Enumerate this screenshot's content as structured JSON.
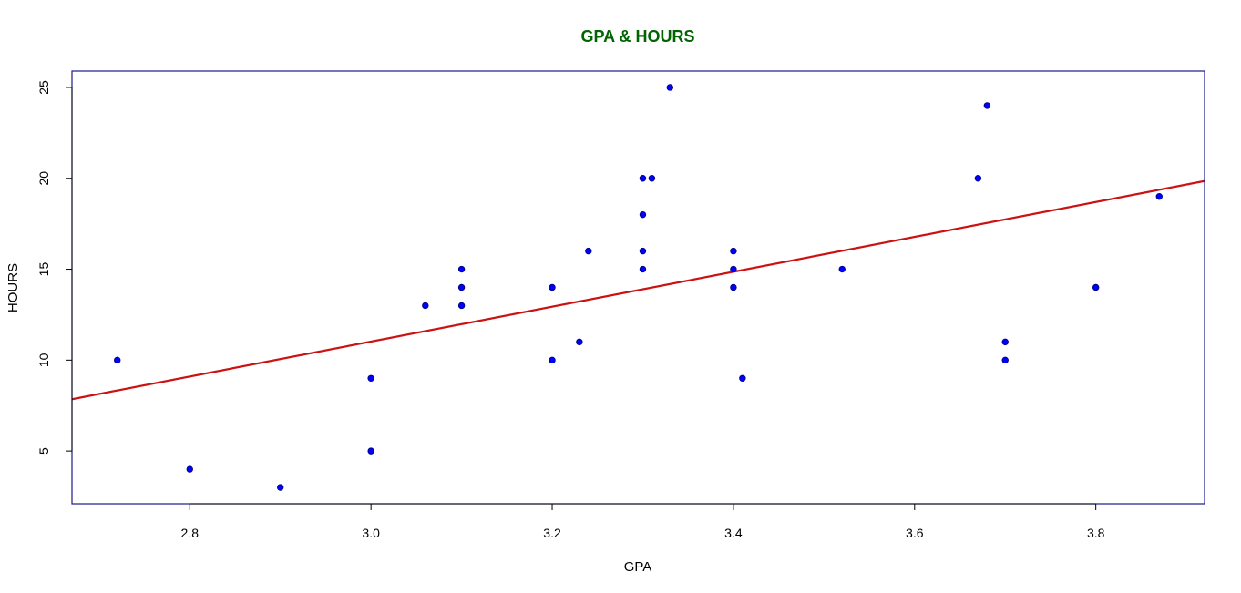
{
  "chart_data": {
    "type": "scatter",
    "title": "GPA & HOURS",
    "xlabel": "GPA",
    "ylabel": "HOURS",
    "xlim": [
      2.67,
      3.92
    ],
    "ylim": [
      2.1,
      25.9
    ],
    "x_ticks": [
      2.8,
      3.0,
      3.2,
      3.4,
      3.6,
      3.8
    ],
    "x_tick_labels": [
      "2.8",
      "3.0",
      "3.2",
      "3.4",
      "3.6",
      "3.8"
    ],
    "y_ticks": [
      5,
      10,
      15,
      20,
      25
    ],
    "y_tick_labels": [
      "5",
      "10",
      "15",
      "20",
      "25"
    ],
    "grid": false,
    "legend": "none",
    "colors": {
      "title": "#006400",
      "points": "#0000ff",
      "point_outline": "#000080",
      "trend_line": "#cc1111",
      "box": "#1a1a8c",
      "axis": "#000000"
    },
    "points": [
      {
        "x": 2.72,
        "y": 10
      },
      {
        "x": 2.8,
        "y": 4
      },
      {
        "x": 2.9,
        "y": 3
      },
      {
        "x": 3.0,
        "y": 9
      },
      {
        "x": 3.0,
        "y": 5
      },
      {
        "x": 3.06,
        "y": 13
      },
      {
        "x": 3.1,
        "y": 15
      },
      {
        "x": 3.1,
        "y": 14
      },
      {
        "x": 3.1,
        "y": 13
      },
      {
        "x": 3.2,
        "y": 14
      },
      {
        "x": 3.2,
        "y": 10
      },
      {
        "x": 3.23,
        "y": 11
      },
      {
        "x": 3.24,
        "y": 16
      },
      {
        "x": 3.3,
        "y": 20
      },
      {
        "x": 3.3,
        "y": 18
      },
      {
        "x": 3.3,
        "y": 16
      },
      {
        "x": 3.3,
        "y": 15
      },
      {
        "x": 3.31,
        "y": 20
      },
      {
        "x": 3.33,
        "y": 25
      },
      {
        "x": 3.4,
        "y": 16
      },
      {
        "x": 3.4,
        "y": 15
      },
      {
        "x": 3.4,
        "y": 14
      },
      {
        "x": 3.41,
        "y": 9
      },
      {
        "x": 3.52,
        "y": 15
      },
      {
        "x": 3.67,
        "y": 20
      },
      {
        "x": 3.68,
        "y": 24
      },
      {
        "x": 3.7,
        "y": 11
      },
      {
        "x": 3.7,
        "y": 10
      },
      {
        "x": 3.8,
        "y": 14
      },
      {
        "x": 3.87,
        "y": 19
      }
    ],
    "trend_line": {
      "x": [
        2.67,
        3.92
      ],
      "y": [
        7.85,
        19.85
      ]
    }
  }
}
